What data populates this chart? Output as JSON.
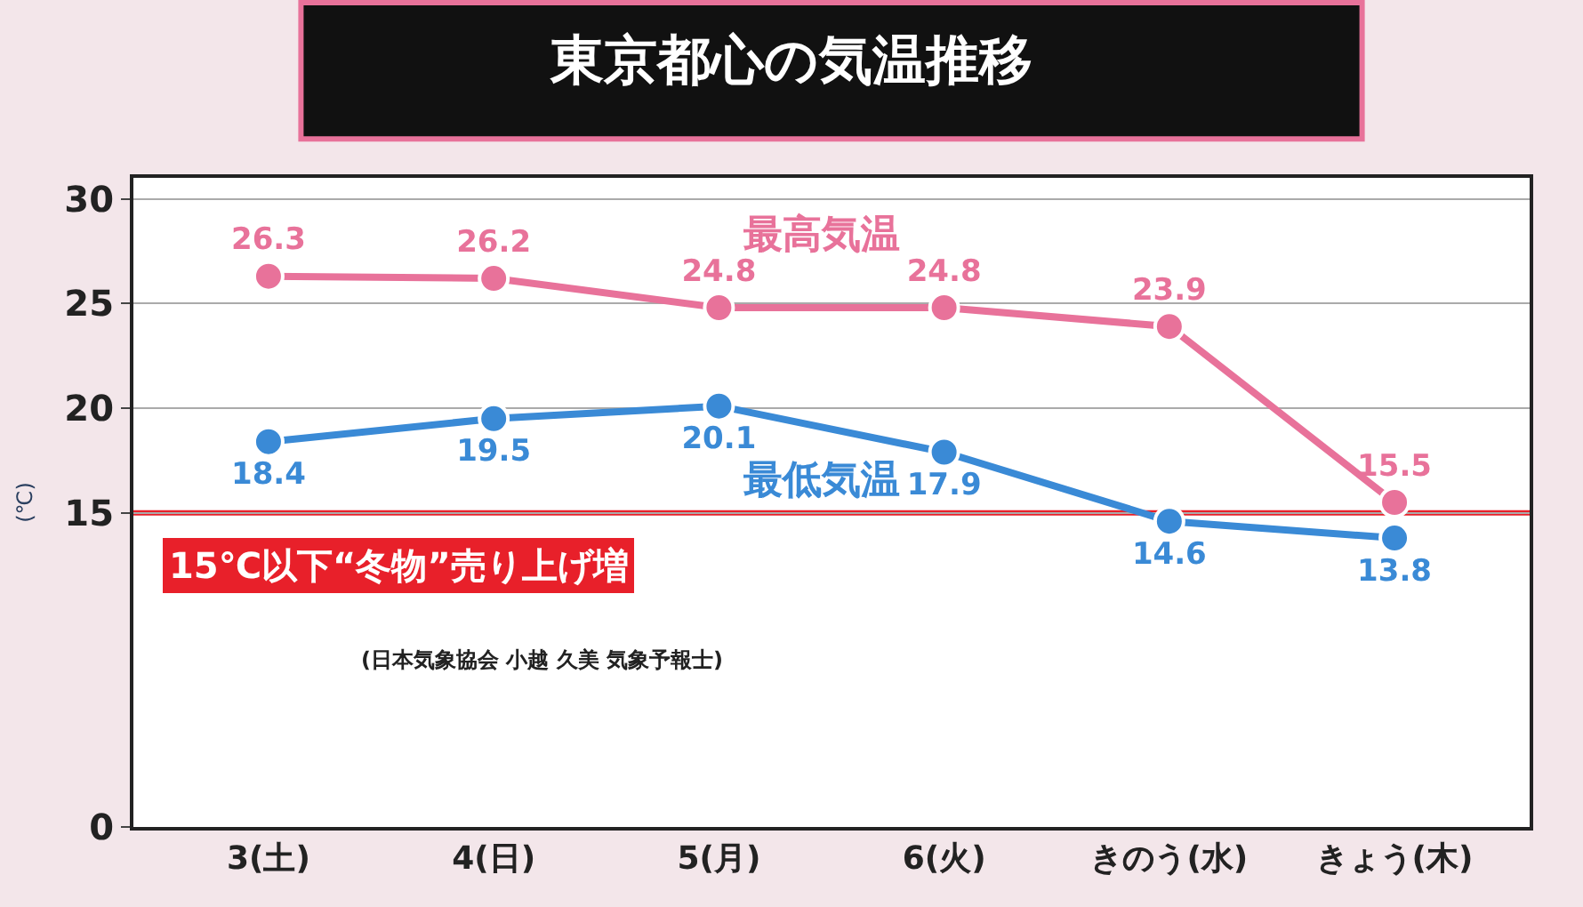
{
  "chart_data": {
    "type": "line",
    "title": "東京都心の気温推移",
    "ylabel": "(℃)",
    "categories": [
      "3(土)",
      "4(日)",
      "5(月)",
      "6(火)",
      "きのう(水)",
      "きょう(木)"
    ],
    "series": [
      {
        "name": "最高気温",
        "color": "#e8729a",
        "values": [
          26.3,
          26.2,
          24.8,
          24.8,
          23.9,
          15.5
        ]
      },
      {
        "name": "最低気温",
        "color": "#3a8ad6",
        "values": [
          18.4,
          19.5,
          20.1,
          17.9,
          14.6,
          13.8
        ]
      }
    ],
    "ylim": [
      0,
      31
    ],
    "yticks": [
      0,
      15,
      20,
      25,
      30
    ],
    "grid": "y",
    "legend": false,
    "marker": "circle",
    "line_style": "solid",
    "data_labels": true,
    "ref_lines": [
      {
        "axis": "y",
        "value": 15,
        "color": "#e8202a"
      }
    ],
    "annotations": [
      "15℃以下“冬物”売り上げ増",
      "(日本気象協会 小越 久美 気象予報士)"
    ]
  }
}
